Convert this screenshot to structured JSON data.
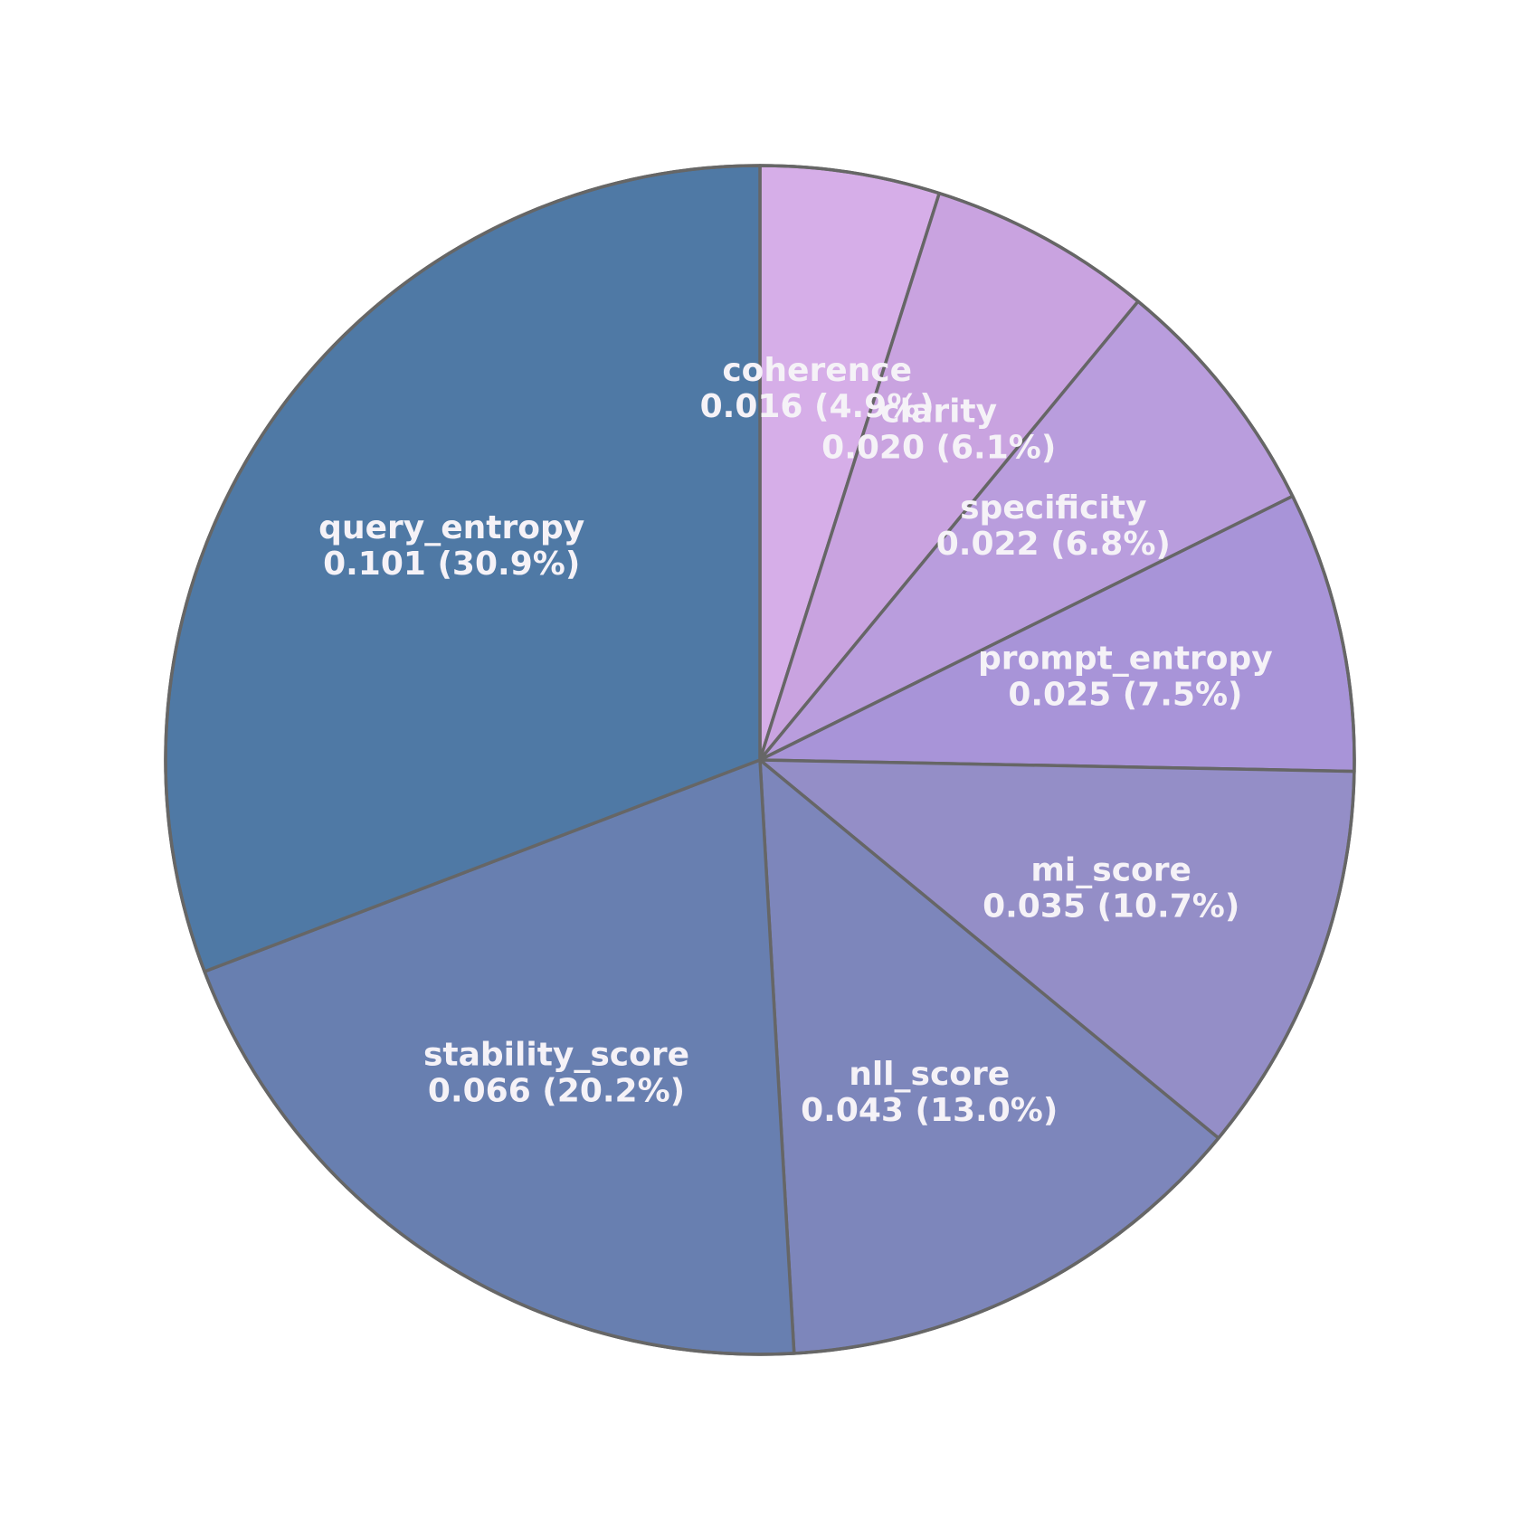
{
  "chart_data": {
    "type": "pie",
    "start": "top",
    "direction": "clockwise",
    "edge_color": "#666666",
    "label_color": "#f5f2f7",
    "slices": [
      {
        "label": "coherence",
        "value": 0.016,
        "percent": "4.9%",
        "value_text": "0.016 (4.9%)",
        "color": "#d6aee8"
      },
      {
        "label": "clarity",
        "value": 0.02,
        "percent": "6.1%",
        "value_text": "0.020 (6.1%)",
        "color": "#c9a3e0"
      },
      {
        "label": "specificity",
        "value": 0.022,
        "percent": "6.8%",
        "value_text": "0.022 (6.8%)",
        "color": "#b99ddd"
      },
      {
        "label": "prompt_entropy",
        "value": 0.025,
        "percent": "7.5%",
        "value_text": "0.025 (7.5%)",
        "color": "#a894d8"
      },
      {
        "label": "mi_score",
        "value": 0.035,
        "percent": "10.7%",
        "value_text": "0.035 (10.7%)",
        "color": "#948ec7"
      },
      {
        "label": "nll_score",
        "value": 0.043,
        "percent": "13.0%",
        "value_text": "0.043 (13.0%)",
        "color": "#7d86bb"
      },
      {
        "label": "stability_score",
        "value": 0.066,
        "percent": "20.2%",
        "value_text": "0.066 (20.2%)",
        "color": "#687fb0"
      },
      {
        "label": "query_entropy",
        "value": 0.101,
        "percent": "30.9%",
        "value_text": "0.101 (30.9%)",
        "color": "#4f79a5"
      }
    ]
  }
}
